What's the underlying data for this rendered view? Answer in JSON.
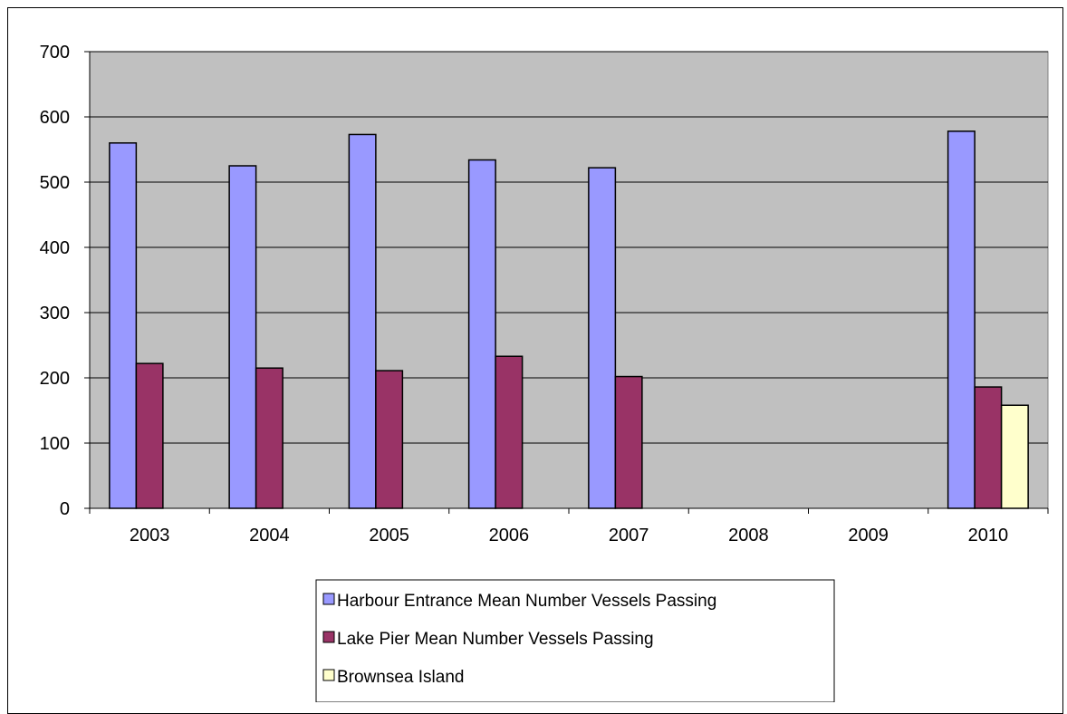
{
  "chart_data": {
    "type": "bar",
    "title": "",
    "xlabel": "",
    "ylabel": "",
    "categories": [
      "2003",
      "2004",
      "2005",
      "2006",
      "2007",
      "2008",
      "2009",
      "2010"
    ],
    "ylim": [
      0,
      700
    ],
    "yticks": [
      0,
      100,
      200,
      300,
      400,
      500,
      600,
      700
    ],
    "grid": true,
    "legend_position": "bottom",
    "series": [
      {
        "name": "Harbour Entrance Mean Number Vessels Passing",
        "color": "#9999ff",
        "values": [
          560,
          525,
          573,
          534,
          522,
          null,
          null,
          578
        ]
      },
      {
        "name": "Lake Pier Mean Number Vessels Passing",
        "color": "#993366",
        "values": [
          222,
          215,
          211,
          233,
          202,
          null,
          null,
          186
        ]
      },
      {
        "name": "Brownsea Island",
        "color": "#ffffcc",
        "values": [
          null,
          null,
          null,
          null,
          null,
          null,
          null,
          158
        ]
      }
    ],
    "plot_background": "#c0c0c0"
  }
}
